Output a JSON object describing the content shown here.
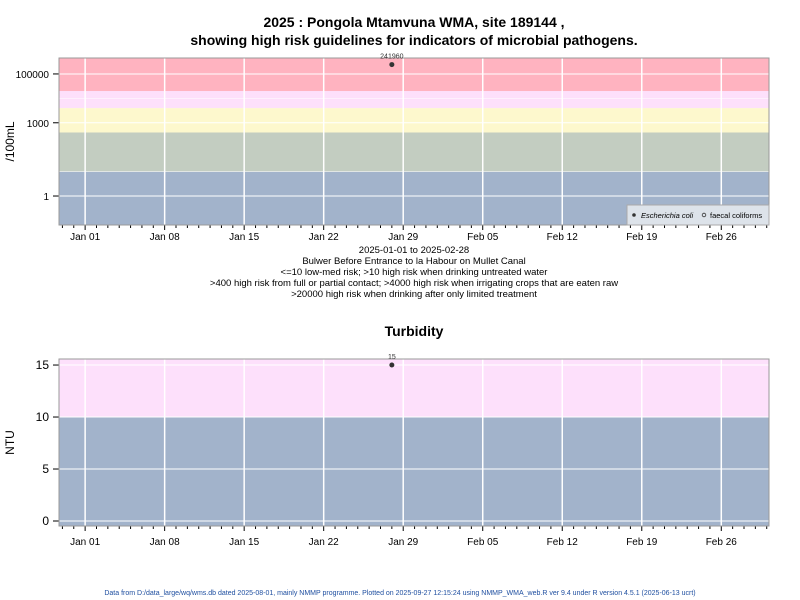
{
  "chart_data": [
    {
      "type": "scatter",
      "title_line1": "2025 : Pongola Mtamvuna WMA, site 189144 ,",
      "title_line2": "showing high risk guidelines for indicators of microbial pathogens.",
      "ylabel": "/100mL",
      "yscale": "log",
      "ylim": [
        0.065,
        450000
      ],
      "yticks": [
        {
          "v": 1,
          "label": "1"
        },
        {
          "v": 1000,
          "label": "1000"
        },
        {
          "v": 100000,
          "label": "100000"
        }
      ],
      "xlim": [
        -2.3,
        60.2
      ],
      "xticks": [
        {
          "d": 0,
          "label": "Jan 01"
        },
        {
          "d": 7,
          "label": "Jan 08"
        },
        {
          "d": 14,
          "label": "Jan 15"
        },
        {
          "d": 21,
          "label": "Jan 22"
        },
        {
          "d": 28,
          "label": "Jan 29"
        },
        {
          "d": 35,
          "label": "Feb 05"
        },
        {
          "d": 42,
          "label": "Feb 12"
        },
        {
          "d": 49,
          "label": "Feb 19"
        },
        {
          "d": 56,
          "label": "Feb 26"
        }
      ],
      "bands": [
        {
          "from": 0.065,
          "to": 10,
          "color": "#a2b3cb"
        },
        {
          "from": 10,
          "to": 400,
          "color": "#c3cdc1"
        },
        {
          "from": 400,
          "to": 4000,
          "color": "#fdf8cd"
        },
        {
          "from": 4000,
          "to": 20000,
          "color": "#fde0fb"
        },
        {
          "from": 20000,
          "to": 450000,
          "color": "#ffb3c0"
        }
      ],
      "series": [
        {
          "name": "Escherichia coli",
          "marker": "filled",
          "points": [
            {
              "d": 27,
              "v": 241960,
              "label": "241960"
            }
          ]
        },
        {
          "name": "faecal coliforms",
          "marker": "open",
          "points": []
        }
      ],
      "legend_position": "bottom-right",
      "subtitle_lines": [
        "2025-01-01 to 2025-02-28",
        "Bulwer Before Entrance to la Habour on Mullet Canal",
        "<=10 low-med risk; >10 high risk when drinking untreated water",
        ">400 high risk from full or partial contact; >4000 high risk when irrigating crops that are eaten raw",
        ">20000 high risk when drinking after only limited treatment"
      ]
    },
    {
      "type": "scatter",
      "title": "Turbidity",
      "ylabel": "NTU",
      "ylim": [
        -0.48,
        15.58
      ],
      "yticks": [
        {
          "v": 0,
          "label": "0"
        },
        {
          "v": 5,
          "label": "5"
        },
        {
          "v": 10,
          "label": "10"
        },
        {
          "v": 15,
          "label": "15"
        }
      ],
      "xlim": [
        -2.3,
        60.2
      ],
      "xticks": [
        {
          "d": 0,
          "label": "Jan 01"
        },
        {
          "d": 7,
          "label": "Jan 08"
        },
        {
          "d": 14,
          "label": "Jan 15"
        },
        {
          "d": 21,
          "label": "Jan 22"
        },
        {
          "d": 28,
          "label": "Jan 29"
        },
        {
          "d": 35,
          "label": "Feb 05"
        },
        {
          "d": 42,
          "label": "Feb 12"
        },
        {
          "d": 49,
          "label": "Feb 19"
        },
        {
          "d": 56,
          "label": "Feb 26"
        }
      ],
      "bands": [
        {
          "from": -0.48,
          "to": 10,
          "color": "#a2b3cb"
        },
        {
          "from": 10,
          "to": 15.58,
          "color": "#fde0fb"
        }
      ],
      "series": [
        {
          "name": "Turbidity",
          "marker": "filled",
          "points": [
            {
              "d": 27,
              "v": 15,
              "label": "15"
            }
          ]
        }
      ]
    }
  ],
  "footer": "Data from D:/data_large/wq/wms.db dated 2025-08-01, mainly NMMP programme. Plotted on 2025-09-27 12:15:24 using NMMP_WMA_web.R ver 9.4 under R version 4.5.1 (2025-06-13 ucrt)"
}
